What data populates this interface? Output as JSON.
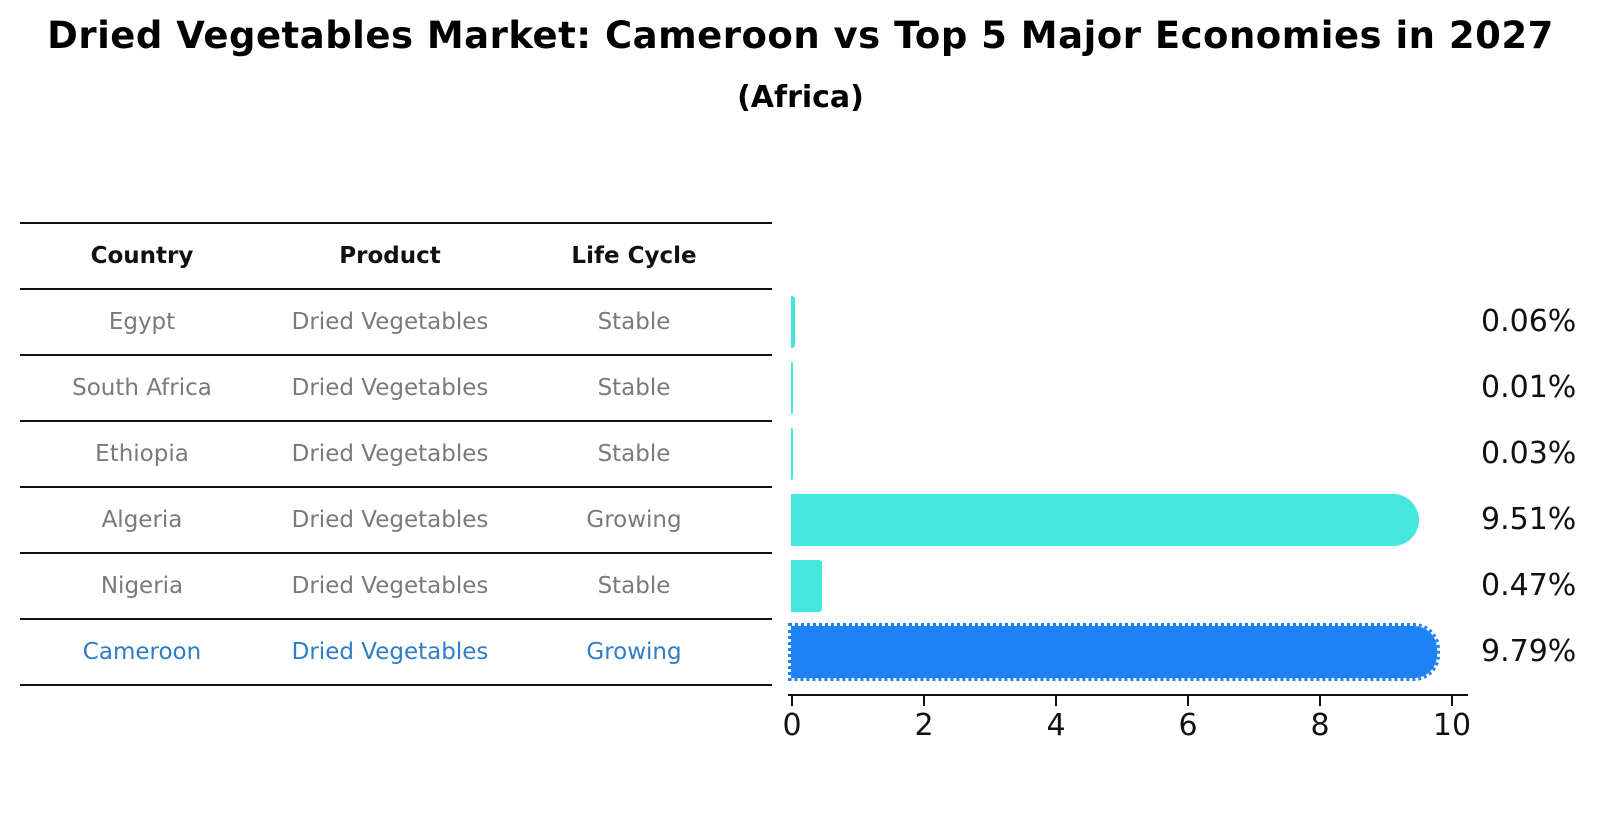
{
  "title": "Dried Vegetables Market: Cameroon vs Top 5 Major Economies in 2027",
  "subtitle": "(Africa)",
  "table": {
    "headers": {
      "country": "Country",
      "product": "Product",
      "life_cycle": "Life Cycle"
    },
    "rows": [
      {
        "country": "Egypt",
        "product": "Dried Vegetables",
        "life_cycle": "Stable",
        "value_label": "0.06%"
      },
      {
        "country": "South Africa",
        "product": "Dried Vegetables",
        "life_cycle": "Stable",
        "value_label": "0.01%"
      },
      {
        "country": "Ethiopia",
        "product": "Dried Vegetables",
        "life_cycle": "Stable",
        "value_label": "0.03%"
      },
      {
        "country": "Algeria",
        "product": "Dried Vegetables",
        "life_cycle": "Growing",
        "value_label": "9.51%"
      },
      {
        "country": "Nigeria",
        "product": "Dried Vegetables",
        "life_cycle": "Stable",
        "value_label": "0.47%"
      },
      {
        "country": "Cameroon",
        "product": "Dried Vegetables",
        "life_cycle": "Growing",
        "value_label": "9.79%"
      }
    ]
  },
  "chart_data": {
    "type": "bar",
    "orientation": "horizontal",
    "title": "Dried Vegetables Market: Cameroon vs Top 5 Major Economies in 2027",
    "subtitle": "(Africa)",
    "categories": [
      "Egypt",
      "South Africa",
      "Ethiopia",
      "Algeria",
      "Nigeria",
      "Cameroon"
    ],
    "values": [
      0.06,
      0.01,
      0.03,
      9.51,
      0.47,
      9.79
    ],
    "value_labels": [
      "0.06%",
      "0.01%",
      "0.03%",
      "9.51%",
      "0.47%",
      "9.79%"
    ],
    "unit": "percent",
    "xlim": [
      0,
      10
    ],
    "xticks": [
      0,
      2,
      4,
      6,
      8,
      10
    ],
    "grid": false,
    "legend": false,
    "bar_color": "#44e7de",
    "highlight_index": 5,
    "highlight_color": "#1e82f2",
    "highlight_text_color": "#2e7dc7",
    "text_color": "#111111",
    "muted_text_color": "#7a7a7a"
  }
}
